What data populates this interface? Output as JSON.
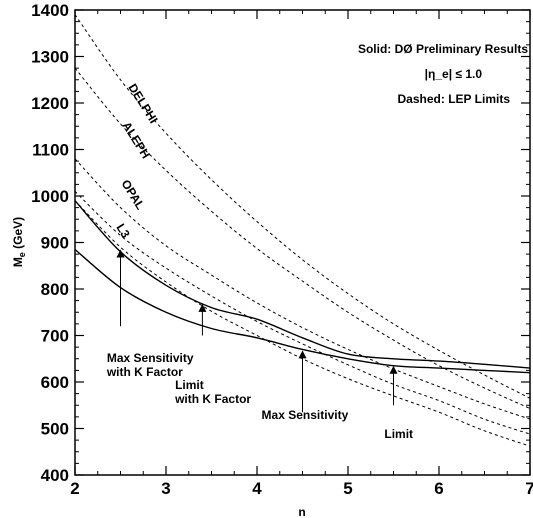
{
  "chart_data": {
    "type": "line",
    "xlabel": "n",
    "ylabel": "M_e (GeV)",
    "xlim": [
      2,
      7
    ],
    "ylim": [
      400,
      1400
    ],
    "x_ticks": [
      2,
      3,
      4,
      5,
      6,
      7
    ],
    "y_ticks": [
      400,
      500,
      600,
      700,
      800,
      900,
      1000,
      1100,
      1200,
      1300,
      1400
    ],
    "grid": false,
    "info_lines": [
      "Solid: DØ Preliminary Results",
      "|η_e| ≤ 1.0",
      "Dashed: LEP Limits"
    ],
    "series": [
      {
        "name": "DELPHI",
        "style": "dashed",
        "x": [
          2,
          2.5,
          3,
          3.5,
          4,
          4.5,
          5,
          5.5,
          6,
          6.5,
          7
        ],
        "y": [
          1390,
          1250,
          1135,
          1035,
          945,
          863,
          790,
          725,
          668,
          615,
          565
        ]
      },
      {
        "name": "ALEPH",
        "style": "dashed",
        "x": [
          2,
          2.5,
          3,
          3.5,
          4,
          4.5,
          5,
          5.5,
          6,
          6.5,
          7
        ],
        "y": [
          1275,
          1155,
          1055,
          967,
          887,
          817,
          750,
          690,
          635,
          587,
          543
        ]
      },
      {
        "name": "OPAL",
        "style": "dashed",
        "x": [
          2,
          2.5,
          3,
          3.5,
          4,
          4.5,
          5,
          5.5,
          6,
          6.5,
          7
        ],
        "y": [
          1080,
          975,
          893,
          830,
          770,
          717,
          670,
          628,
          590,
          553,
          520
        ]
      },
      {
        "name": "L3",
        "style": "dashed",
        "x": [
          2,
          2.5,
          3,
          3.5,
          4,
          4.5,
          5,
          5.5,
          6,
          6.5,
          7
        ],
        "y": [
          1010,
          915,
          845,
          785,
          730,
          682,
          637,
          595,
          560,
          520,
          488
        ]
      },
      {
        "name": "",
        "style": "dashed",
        "x": [
          2,
          2.5,
          3,
          3.5,
          4,
          4.5,
          5,
          5.5,
          6,
          6.5,
          7
        ],
        "y": [
          990,
          890,
          815,
          752,
          700,
          650,
          607,
          570,
          535,
          495,
          462
        ]
      },
      {
        "name": "Limit with K Factor",
        "style": "solid",
        "x": [
          2,
          2.5,
          3,
          3.5,
          4,
          4.5,
          5,
          5.5,
          6,
          6.5,
          7
        ],
        "y": [
          990,
          880,
          808,
          760,
          735,
          695,
          660,
          650,
          645,
          638,
          630
        ]
      },
      {
        "name": "Limit",
        "style": "solid",
        "x": [
          2,
          2.5,
          3,
          3.5,
          4,
          4.5,
          5,
          5.5,
          6,
          6.5,
          7
        ],
        "y": [
          885,
          803,
          750,
          715,
          695,
          670,
          650,
          635,
          630,
          625,
          620
        ]
      }
    ],
    "curve_labels": [
      "DELPHI",
      "ALEPH",
      "OPAL",
      "L3"
    ],
    "annotations": [
      {
        "lines": [
          "Max Sensitivity",
          "with K Factor"
        ],
        "x": 2.35,
        "y": 643,
        "arrow_x": 2.5,
        "arrow_from": 720,
        "arrow_to": 885
      },
      {
        "lines": [
          "Limit",
          "with K Factor"
        ],
        "x": 3.1,
        "y": 585,
        "arrow_x": 3.4,
        "arrow_from": 700,
        "arrow_to": 768
      },
      {
        "lines": [
          "Max Sensitivity"
        ],
        "x": 4.05,
        "y": 520,
        "arrow_x": 4.5,
        "arrow_from": 535,
        "arrow_to": 668
      },
      {
        "lines": [
          "Limit"
        ],
        "x": 5.4,
        "y": 480,
        "arrow_x": 5.5,
        "arrow_from": 550,
        "arrow_to": 635
      }
    ]
  }
}
